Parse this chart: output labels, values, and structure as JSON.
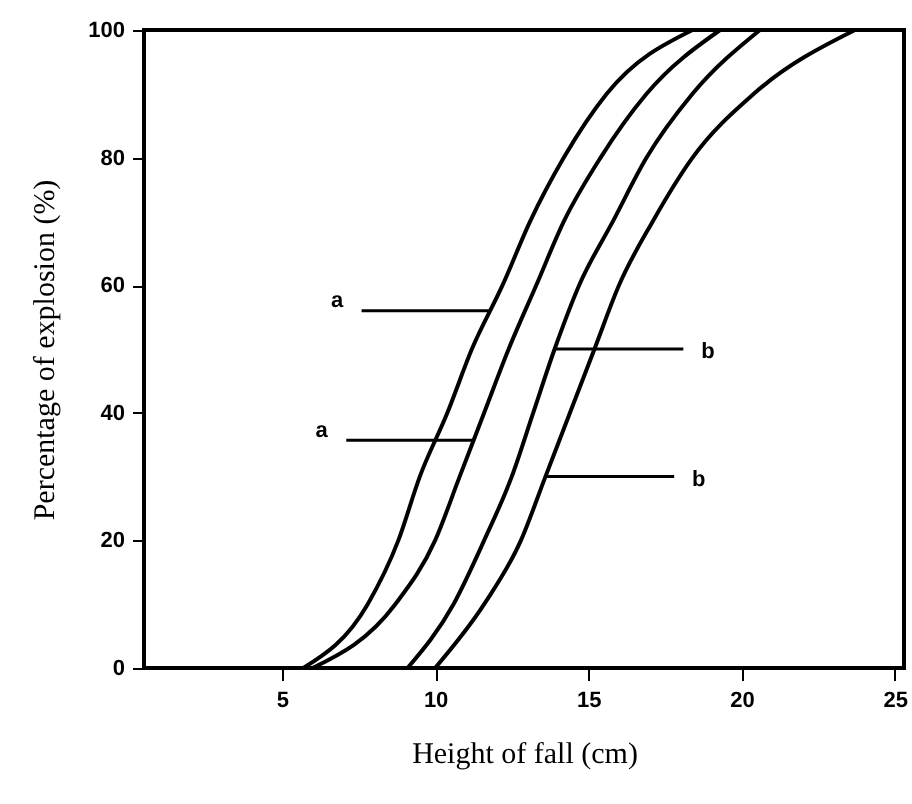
{
  "chart_data": {
    "type": "line",
    "xlabel": "Height of fall (cm)",
    "ylabel": "Percentage of explosion (%)",
    "xlim": [
      0.5,
      25.3
    ],
    "ylim": [
      0,
      100
    ],
    "xticks": [
      5,
      10,
      15,
      20,
      25
    ],
    "yticks": [
      0,
      20,
      40,
      60,
      80,
      100
    ],
    "grid": false,
    "marker": "none",
    "line_style": "solid",
    "series": [
      {
        "color": "#000000",
        "x": [
          5.7,
          7.8,
          8.8,
          9.5,
          10.4,
          11.2,
          12.2,
          13.1,
          14.2,
          15.6,
          18.4
        ],
        "values": [
          0,
          10,
          20,
          30,
          40,
          50,
          60,
          70,
          80,
          90,
          100
        ]
      },
      {
        "color": "#000000",
        "x": [
          6.0,
          8.7,
          10.0,
          10.8,
          11.6,
          12.4,
          13.3,
          14.2,
          15.4,
          16.9,
          19.3
        ],
        "values": [
          0,
          10,
          20,
          30,
          40,
          50,
          60,
          70,
          80,
          90,
          100
        ]
      },
      {
        "color": "#000000",
        "x": [
          9.1,
          10.6,
          11.6,
          12.5,
          13.2,
          13.9,
          14.7,
          15.8,
          16.9,
          18.4,
          20.6
        ],
        "values": [
          0,
          10,
          20,
          30,
          40,
          50,
          60,
          70,
          80,
          90,
          100
        ]
      },
      {
        "color": "#000000",
        "x": [
          10.0,
          11.6,
          12.8,
          13.6,
          14.4,
          15.2,
          16.0,
          17.1,
          18.4,
          20.4,
          23.7
        ],
        "values": [
          0,
          10,
          20,
          30,
          40,
          50,
          60,
          70,
          80,
          90,
          100
        ]
      }
    ],
    "annotations": [
      {
        "text": "a",
        "x": 11.8,
        "y": 56
      },
      {
        "text": "a",
        "x": 11.3,
        "y": 35.7
      },
      {
        "text": "b",
        "x": 13.9,
        "y": 50
      },
      {
        "text": "b",
        "x": 13.6,
        "y": 30
      }
    ]
  }
}
